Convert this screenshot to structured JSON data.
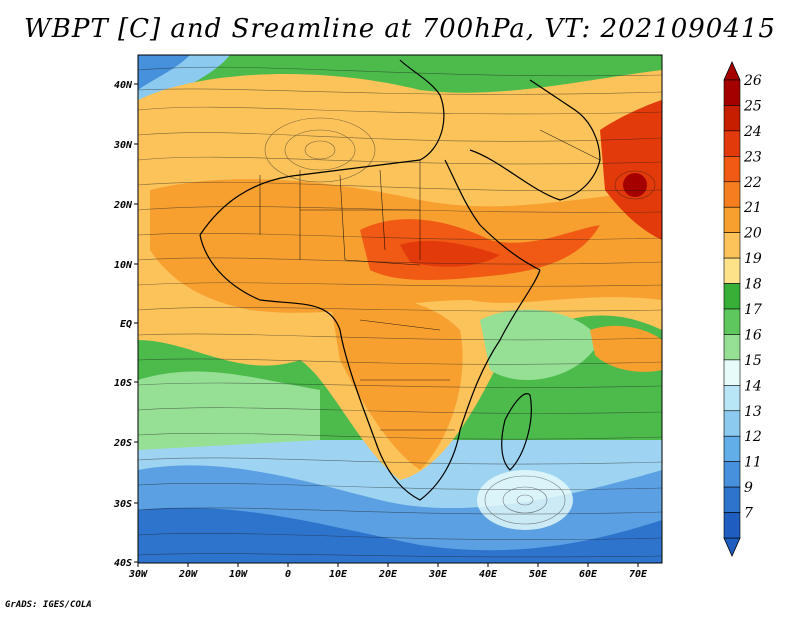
{
  "title": "WBPT [C] and Sreamline at 700hPa, VT: 2021090415",
  "credit": "GrADS: IGES/COLA",
  "map": {
    "lon_ticks": [
      "30W",
      "20W",
      "10W",
      "0",
      "10E",
      "20E",
      "30E",
      "40E",
      "50E",
      "60E",
      "70E"
    ],
    "lat_ticks": [
      "40N",
      "30N",
      "20N",
      "10N",
      "EQ",
      "10S",
      "20S",
      "30S",
      "40S"
    ]
  },
  "colorbar": {
    "labels": [
      "26",
      "25",
      "24",
      "23",
      "22",
      "21",
      "20",
      "19",
      "18",
      "17",
      "16",
      "15",
      "14",
      "13",
      "12",
      "11",
      "9",
      "7"
    ],
    "colors": [
      "#a50000",
      "#c81e00",
      "#e23a0a",
      "#f05a14",
      "#f57f1e",
      "#f7a030",
      "#fbc35a",
      "#fde28a",
      "#38b038",
      "#5ec85e",
      "#96e096",
      "#e8fbfb",
      "#b8e6f6",
      "#8ccaf0",
      "#62aee8",
      "#4690dc",
      "#2f74cc",
      "#1f5ec0"
    ]
  }
}
